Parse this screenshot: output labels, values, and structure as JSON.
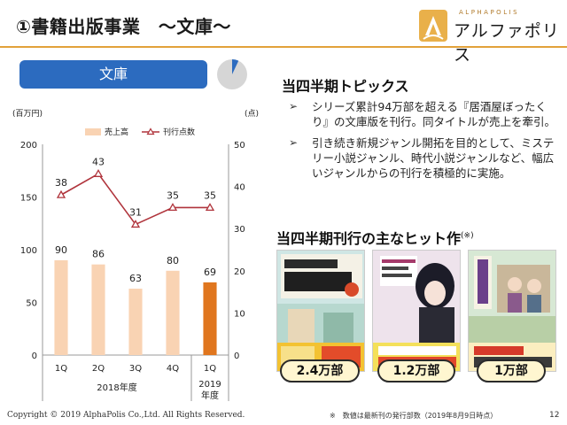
{
  "header": {
    "title": "①書籍出版事業　～文庫～",
    "logo_sub": "ALPHAPOLIS",
    "logo_name": "アルファポリス"
  },
  "tab": {
    "label": "文庫"
  },
  "pie": {
    "share": 0.07,
    "colors": {
      "slice": "#2c6bbf",
      "rest": "#d6d6d6"
    }
  },
  "chart_data": {
    "type": "bar",
    "categories": [
      "1Q",
      "2Q",
      "3Q",
      "4Q",
      "1Q"
    ],
    "group_labels": [
      "2018年度",
      "2019年度"
    ],
    "series": [
      {
        "name": "売上高",
        "kind": "bar",
        "axis": "left",
        "values": [
          90,
          86,
          63,
          80,
          69
        ],
        "colors": [
          "#f9d3b3",
          "#f9d3b3",
          "#f9d3b3",
          "#f9d3b3",
          "#e0761e"
        ]
      },
      {
        "name": "刊行点数",
        "kind": "line",
        "axis": "right",
        "values": [
          38,
          43,
          31,
          35,
          35
        ],
        "color": "#b0343c"
      }
    ],
    "left_axis": {
      "unit": "(百万円)",
      "ylim": [
        0,
        200
      ],
      "ticks": [
        0,
        50,
        100,
        150,
        200
      ]
    },
    "right_axis": {
      "unit": "(点)",
      "ylim": [
        0,
        50
      ],
      "ticks": [
        0,
        10,
        20,
        30,
        40,
        50
      ]
    },
    "legend_position": "top-center",
    "grid": false
  },
  "topics": {
    "title": "当四半期トピックス",
    "items": [
      "シリーズ累計94万部を超える『居酒屋ぼったくり』の文庫版を刊行。同タイトルが売上を牽引。",
      "引き続き新規ジャンル開拓を目的として、ミステリー小説ジャンル、時代小説ジャンルなど、幅広いジャンルからの刊行を積極的に実施。"
    ]
  },
  "hits": {
    "title": "当四半期刊行の主なヒット作",
    "note_mark": "(※)",
    "books": [
      {
        "badge": "2.4万部"
      },
      {
        "badge": "1.2万部"
      },
      {
        "badge": "1万部"
      }
    ]
  },
  "footer": {
    "copyright": "Copyright © 2019 AlphaPolis Co.,Ltd.  All Rights Reserved.",
    "footnote": "※　数値は最新刊の発行部数（2019年8月9日時点）",
    "page": "12"
  }
}
